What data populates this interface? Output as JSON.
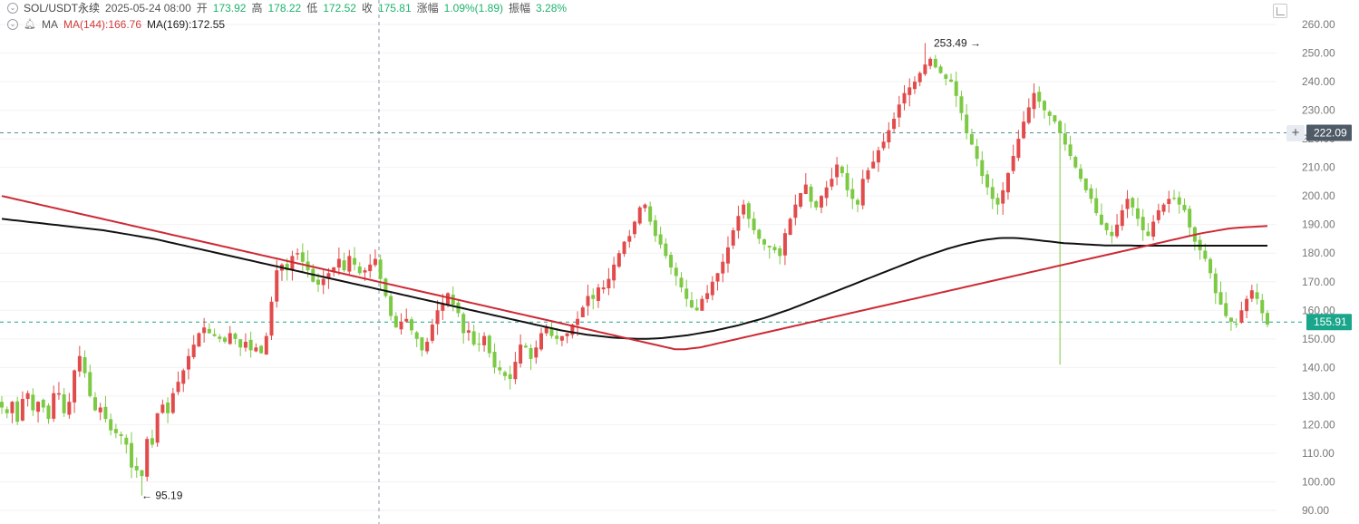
{
  "header": {
    "symbol": "SOL/USDT永续",
    "datetime": "2025-05-24 08:00",
    "open_label": "开",
    "open_value": "173.92",
    "high_label": "高",
    "high_value": "178.22",
    "low_label": "低",
    "low_value": "172.52",
    "close_label": "收",
    "close_value": "175.81",
    "change_label": "涨幅",
    "change_value": "1.09%(1.89)",
    "amplitude_label": "振幅",
    "amplitude_value": "3.28%",
    "ma_label": "MA",
    "ma144_text": "MA(144):166.76",
    "ma169_text": "MA(169):172.55"
  },
  "colors": {
    "up": "#e24b4b",
    "down": "#7cc943",
    "ma144": "#cc2a34",
    "ma169": "#111111",
    "grid": "#e6e6e6",
    "dashed": "#4a8f95",
    "price_tag": "#1aa68a",
    "crosshair_tag": "#4e5a66"
  },
  "icons": [
    "chevron-down-icon",
    "bell-icon",
    "fullscreen-icon",
    "plus-icon"
  ],
  "chart_data": {
    "type": "candlestick",
    "ylim": [
      90,
      260
    ],
    "y_ticks": [
      "260.00",
      "250.00",
      "240.00",
      "230.00",
      "220.00",
      "210.00",
      "200.00",
      "190.00",
      "180.00",
      "170.00",
      "160.00",
      "150.00",
      "140.00",
      "130.00",
      "120.00",
      "110.00",
      "100.00",
      "90.00"
    ],
    "max_annotation": {
      "label": "253.49",
      "value": 253.49
    },
    "min_annotation": {
      "label": "95.19",
      "value": 95.19
    },
    "current_price": {
      "label": "155.91",
      "value": 155.91
    },
    "crosshair_price": {
      "label": "222.09",
      "value": 222.09
    },
    "close": [
      126,
      124,
      128,
      121,
      129,
      131,
      125,
      128,
      126,
      122,
      131,
      131,
      124,
      128,
      139,
      144,
      138,
      130,
      125,
      126,
      122,
      118,
      117,
      116,
      113,
      105,
      104,
      102,
      115,
      113,
      124,
      127,
      124,
      131,
      135,
      139,
      144,
      148,
      152,
      154,
      152,
      151,
      150,
      149,
      152,
      150,
      147,
      149,
      146,
      147,
      145,
      151,
      163,
      174,
      176,
      174,
      179,
      180,
      177,
      174,
      170,
      169,
      171,
      173,
      175,
      178,
      174,
      179,
      176,
      173,
      174,
      176,
      178,
      171,
      165,
      158,
      154,
      156,
      157,
      153,
      150,
      146,
      149,
      155,
      160,
      162,
      166,
      162,
      159,
      152,
      153,
      148,
      148,
      151,
      145,
      140,
      139,
      137,
      136,
      142,
      148,
      147,
      143,
      147,
      152,
      154,
      151,
      150,
      151,
      152,
      155,
      157,
      161,
      165,
      164,
      168,
      168,
      171,
      176,
      180,
      184,
      186,
      191,
      196,
      197,
      191,
      186,
      183,
      179,
      175,
      172,
      168,
      164,
      161,
      160,
      164,
      166,
      170,
      173,
      177,
      182,
      188,
      193,
      197,
      192,
      188,
      185,
      183,
      182,
      181,
      179,
      187,
      192,
      197,
      201,
      204,
      198,
      196,
      200,
      203,
      206,
      211,
      208,
      202,
      199,
      197,
      206,
      209,
      212,
      216,
      219,
      223,
      227,
      232,
      236,
      238,
      240,
      243,
      246,
      248,
      245,
      243,
      241,
      240,
      235,
      229,
      222,
      218,
      213,
      207,
      203,
      199,
      197,
      202,
      208,
      214,
      220,
      226,
      231,
      236,
      233,
      230,
      228,
      226,
      222,
      218,
      214,
      210,
      206,
      202,
      199,
      194,
      190,
      188,
      186,
      190,
      195,
      199,
      196,
      192,
      188,
      186,
      191,
      195,
      197,
      199,
      199,
      197,
      195,
      189,
      184,
      181,
      178,
      173,
      166,
      162,
      158,
      156,
      155,
      160,
      164,
      167,
      164,
      159,
      155
    ],
    "ma144": [
      200,
      199.6,
      199.2,
      198.8,
      198.4,
      198,
      197.6,
      197.2,
      196.8,
      196.4,
      196,
      195.6,
      195.2,
      194.8,
      194.4,
      194,
      193.6,
      193.2,
      192.8,
      192.4,
      192,
      191.6,
      191.2,
      190.8,
      190.4,
      190,
      189.6,
      189.2,
      188.8,
      188.4,
      188,
      187.6,
      187.2,
      186.8,
      186.4,
      186,
      185.6,
      185.2,
      184.8,
      184.4,
      184,
      183.6,
      183.2,
      182.8,
      182.4,
      182,
      181.6,
      181.2,
      180.8,
      180.4,
      180,
      179.6,
      179.2,
      178.8,
      178.4,
      178,
      177.6,
      177.2,
      176.8,
      176.4,
      176,
      175.6,
      175.2,
      174.8,
      174.4,
      174,
      173.6,
      173.2,
      172.8,
      172.4,
      172,
      171.6,
      171.2,
      170.8,
      170.4,
      170,
      169.6,
      169.2,
      168.8,
      168.4,
      168,
      167.6,
      167.2,
      166.8,
      166.4,
      166,
      165.6,
      165.2,
      164.8,
      164.4,
      164,
      163.6,
      163.2,
      162.8,
      162.4,
      162,
      161.6,
      161.2,
      160.8,
      160.4,
      160,
      159.6,
      159.2,
      158.8,
      158.4,
      158,
      157.6,
      157.2,
      156.8,
      156.4,
      156,
      155.6,
      155.2,
      154.8,
      154.4,
      154,
      153.6,
      153.2,
      152.8,
      152.4,
      152,
      151.6,
      151.2,
      150.8,
      150.4,
      150,
      149.6,
      149.2,
      148.8,
      148.4,
      148,
      147.6,
      147.2,
      146.8,
      146.4,
      146.4,
      146.4,
      146.6,
      146.8,
      147,
      147.4,
      147.8,
      148.2,
      148.6,
      149,
      149.4,
      149.8,
      150.2,
      150.6,
      151,
      151.4,
      151.8,
      152.2,
      152.6,
      153,
      153.4,
      153.8,
      154.2,
      154.6,
      155,
      155.4,
      155.8,
      156.2,
      156.6,
      157,
      157.4,
      157.8,
      158.2,
      158.6,
      159,
      159.4,
      159.8,
      160.2,
      160.6,
      161,
      161.4,
      161.8,
      162.2,
      162.6,
      163,
      163.4,
      163.8,
      164.2,
      164.6,
      165,
      165.4,
      165.8,
      166.2,
      166.6,
      167,
      167.4,
      167.8,
      168.2,
      168.6,
      169,
      169.4,
      169.8,
      170.2,
      170.6,
      171,
      171.4,
      171.8,
      172.2,
      172.6,
      173,
      173.4,
      173.8,
      174.2,
      174.6,
      175,
      175.4,
      175.8,
      176.2,
      176.6,
      177,
      177.4,
      177.8,
      178.2,
      178.6,
      179,
      179.4,
      179.8,
      180.2,
      180.6,
      181,
      181.4,
      181.8,
      182.2,
      182.6,
      183,
      183.4,
      183.8,
      184.2,
      184.6,
      185,
      185.4,
      185.8,
      186.2,
      186.6,
      187,
      187.3,
      187.6,
      187.9,
      188.2,
      188.5,
      188.7,
      188.9,
      189,
      189.1,
      189.2,
      189.3,
      189.4,
      189.5
    ],
    "ma169": [
      192,
      191.8,
      191.6,
      191.4,
      191.2,
      191,
      190.8,
      190.6,
      190.4,
      190.2,
      190,
      189.8,
      189.6,
      189.4,
      189.2,
      189,
      188.8,
      188.6,
      188.4,
      188.2,
      188,
      187.7,
      187.4,
      187.1,
      186.8,
      186.5,
      186.2,
      185.9,
      185.6,
      185.3,
      185,
      184.6,
      184.2,
      183.8,
      183.4,
      183,
      182.6,
      182.2,
      181.8,
      181.4,
      181,
      180.6,
      180.2,
      179.8,
      179.4,
      179,
      178.6,
      178.2,
      177.8,
      177.4,
      177,
      176.6,
      176.2,
      175.8,
      175.4,
      175,
      174.6,
      174.2,
      173.8,
      173.4,
      173,
      172.6,
      172.2,
      171.8,
      171.4,
      171,
      170.6,
      170.2,
      169.8,
      169.4,
      169,
      168.6,
      168.2,
      167.8,
      167.4,
      167,
      166.6,
      166.2,
      165.8,
      165.4,
      165,
      164.6,
      164.2,
      163.8,
      163.4,
      163,
      162.6,
      162.2,
      161.8,
      161.4,
      161,
      160.6,
      160.2,
      159.8,
      159.4,
      159,
      158.6,
      158.2,
      157.8,
      157.4,
      157,
      156.6,
      156.2,
      155.8,
      155.4,
      155,
      154.6,
      154.2,
      153.8,
      153.4,
      153,
      152.7,
      152.4,
      152.1,
      151.8,
      151.5,
      151.3,
      151.1,
      150.9,
      150.7,
      150.5,
      150.4,
      150.3,
      150.2,
      150.1,
      150,
      150,
      150,
      150.1,
      150.2,
      150.3,
      150.5,
      150.7,
      150.9,
      151.1,
      151.3,
      151.6,
      151.9,
      152.2,
      152.5,
      152.8,
      153.2,
      153.6,
      154,
      154.4,
      154.8,
      155.3,
      155.8,
      156.3,
      156.8,
      157.3,
      157.9,
      158.5,
      159.1,
      159.7,
      160.3,
      161,
      161.7,
      162.4,
      163.1,
      163.8,
      164.5,
      165.2,
      165.9,
      166.6,
      167.3,
      168,
      168.7,
      169.4,
      170.1,
      170.8,
      171.5,
      172.2,
      172.9,
      173.6,
      174.3,
      175,
      175.7,
      176.4,
      177.1,
      177.8,
      178.5,
      179.1,
      179.7,
      180.3,
      180.9,
      181.5,
      182,
      182.5,
      183,
      183.4,
      183.8,
      184.2,
      184.5,
      184.8,
      185,
      185.2,
      185.3,
      185.3,
      185.3,
      185.2,
      185.1,
      184.9,
      184.7,
      184.5,
      184.3,
      184.1,
      183.9,
      183.7,
      183.5,
      183.4,
      183.3,
      183.2,
      183.1,
      183,
      182.9,
      182.8,
      182.7,
      182.7,
      182.7,
      182.7,
      182.7,
      182.7,
      182.6,
      182.6,
      182.6,
      182.6,
      182.6,
      182.6,
      182.6,
      182.6,
      182.6,
      182.6,
      182.6,
      182.6,
      182.6,
      182.6,
      182.6,
      182.6,
      182.6,
      182.6,
      182.6,
      182.6,
      182.6,
      182.6,
      182.6,
      182.6,
      182.6,
      182.6,
      182.6
    ]
  }
}
